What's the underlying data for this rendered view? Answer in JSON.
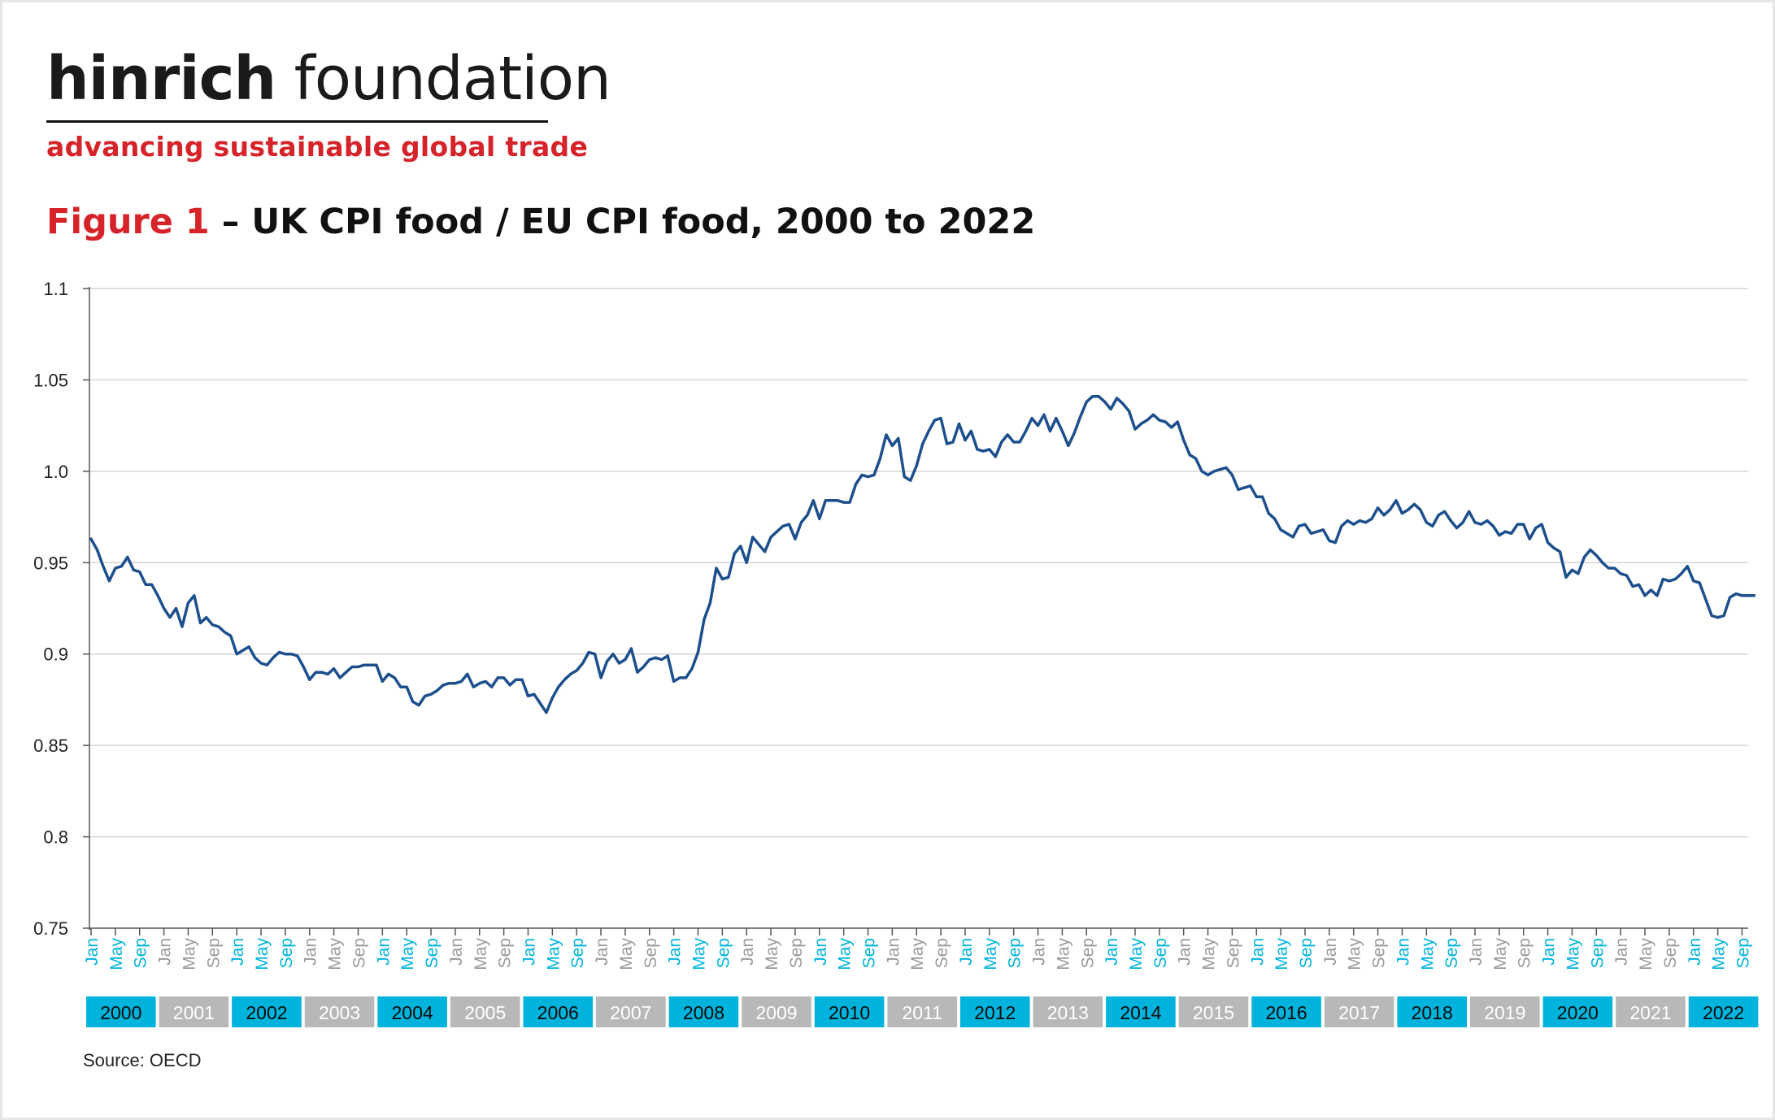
{
  "brand": {
    "name_bold": "hinrich",
    "name_light": "foundation",
    "tagline": "advancing sustainable global trade"
  },
  "figure": {
    "label": "Figure 1",
    "title": " – UK CPI food / EU CPI food, 2000 to 2022"
  },
  "source": "Source: OECD",
  "colors": {
    "line": "#1d4f8c",
    "year_box_cyan": "#00b3dc",
    "year_box_grey": "#b8b8b8",
    "accent_red": "#d6232a"
  },
  "chart_data": {
    "type": "line",
    "title": "",
    "xlabel": "",
    "ylabel": "",
    "ylim": [
      0.75,
      1.1
    ],
    "yticks": [
      0.75,
      0.8,
      0.85,
      0.9,
      0.95,
      1.0,
      1.05,
      1.1
    ],
    "ytick_labels": [
      "0.75",
      "0.8",
      "0.85",
      "0.9",
      "0.95",
      "1.0",
      "1.05",
      "1.1"
    ],
    "grid": true,
    "month_labels": [
      "Jan",
      "May",
      "Sep"
    ],
    "years": [
      "2000",
      "2001",
      "2002",
      "2003",
      "2004",
      "2005",
      "2006",
      "2007",
      "2008",
      "2009",
      "2010",
      "2011",
      "2012",
      "2013",
      "2014",
      "2015",
      "2016",
      "2017",
      "2018",
      "2019",
      "2020",
      "2021",
      "2022"
    ],
    "series": [
      {
        "values": [
          0.963,
          0.957,
          0.948,
          0.94,
          0.947,
          0.948,
          0.953,
          0.946,
          0.945,
          0.938,
          0.938,
          0.932,
          0.925,
          0.92,
          0.925,
          0.915,
          0.928,
          0.932,
          0.917,
          0.92,
          0.916,
          0.915,
          0.912,
          0.91,
          0.9,
          0.902,
          0.904,
          0.898,
          0.895,
          0.894,
          0.898,
          0.901,
          0.9,
          0.9,
          0.899,
          0.893,
          0.886,
          0.89,
          0.89,
          0.889,
          0.892,
          0.887,
          0.89,
          0.893,
          0.893,
          0.894,
          0.894,
          0.894,
          0.885,
          0.889,
          0.887,
          0.882,
          0.882,
          0.874,
          0.872,
          0.877,
          0.878,
          0.88,
          0.883,
          0.884,
          0.884,
          0.885,
          0.889,
          0.882,
          0.884,
          0.885,
          0.882,
          0.887,
          0.887,
          0.883,
          0.886,
          0.886,
          0.877,
          0.878,
          0.873,
          0.868,
          0.876,
          0.882,
          0.886,
          0.889,
          0.891,
          0.895,
          0.901,
          0.9,
          0.887,
          0.896,
          0.9,
          0.895,
          0.897,
          0.903,
          0.89,
          0.893,
          0.897,
          0.898,
          0.897,
          0.899,
          0.885,
          0.887,
          0.887,
          0.892,
          0.901,
          0.919,
          0.928,
          0.947,
          0.941,
          0.942,
          0.955,
          0.959,
          0.95,
          0.964,
          0.96,
          0.956,
          0.964,
          0.967,
          0.97,
          0.971,
          0.963,
          0.972,
          0.976,
          0.984,
          0.974,
          0.984,
          0.984,
          0.984,
          0.983,
          0.983,
          0.993,
          0.998,
          0.997,
          0.998,
          1.007,
          1.02,
          1.014,
          1.018,
          0.997,
          0.995,
          1.003,
          1.015,
          1.022,
          1.028,
          1.029,
          1.015,
          1.016,
          1.026,
          1.017,
          1.022,
          1.012,
          1.011,
          1.012,
          1.008,
          1.016,
          1.02,
          1.016,
          1.016,
          1.022,
          1.029,
          1.025,
          1.031,
          1.022,
          1.029,
          1.022,
          1.014,
          1.021,
          1.03,
          1.038,
          1.041,
          1.041,
          1.038,
          1.034,
          1.04,
          1.037,
          1.033,
          1.023,
          1.026,
          1.028,
          1.031,
          1.028,
          1.027,
          1.024,
          1.027,
          1.017,
          1.009,
          1.007,
          1.0,
          0.998,
          1.0,
          1.001,
          1.002,
          0.998,
          0.99,
          0.991,
          0.992,
          0.986,
          0.986,
          0.977,
          0.974,
          0.968,
          0.966,
          0.964,
          0.97,
          0.971,
          0.966,
          0.967,
          0.968,
          0.962,
          0.961,
          0.97,
          0.973,
          0.971,
          0.973,
          0.972,
          0.974,
          0.98,
          0.976,
          0.979,
          0.984,
          0.977,
          0.979,
          0.982,
          0.979,
          0.972,
          0.97,
          0.976,
          0.978,
          0.973,
          0.969,
          0.972,
          0.978,
          0.972,
          0.971,
          0.973,
          0.97,
          0.965,
          0.967,
          0.966,
          0.971,
          0.971,
          0.963,
          0.969,
          0.971,
          0.961,
          0.958,
          0.956,
          0.942,
          0.946,
          0.944,
          0.953,
          0.957,
          0.954,
          0.95,
          0.947,
          0.947,
          0.944,
          0.943,
          0.937,
          0.938,
          0.932,
          0.935,
          0.932,
          0.941,
          0.94,
          0.941,
          0.944,
          0.948,
          0.94,
          0.939,
          0.93,
          0.921,
          0.92,
          0.921,
          0.931,
          0.933,
          0.932,
          0.932,
          0.932
        ]
      }
    ]
  }
}
